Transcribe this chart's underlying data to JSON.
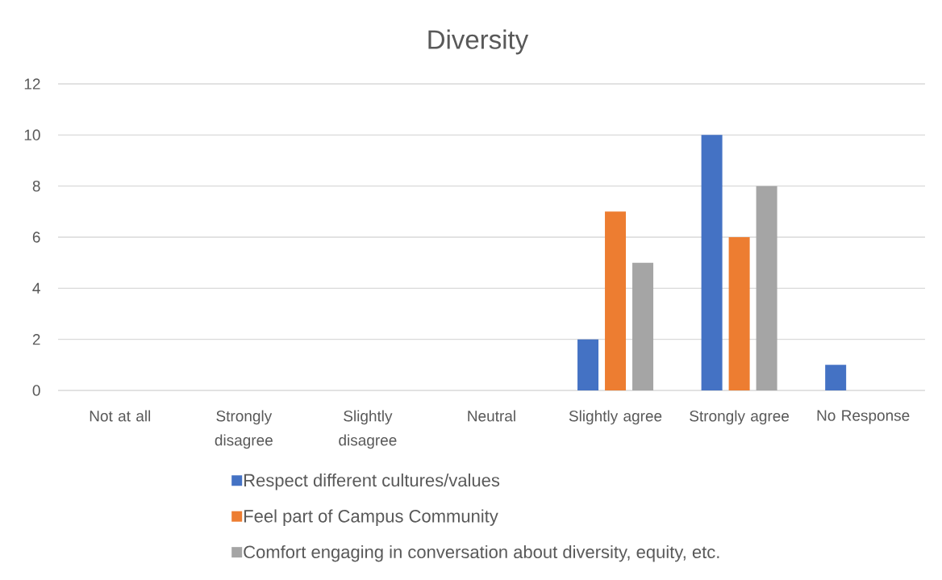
{
  "chart_data": {
    "type": "bar",
    "title": "Diversity",
    "categories": [
      "Not at all",
      "Strongly disagree",
      "Slightly disagree",
      "Neutral",
      "Slightly agree",
      "Strongly agree",
      "No Response"
    ],
    "series": [
      {
        "name": "Respect different cultures/values",
        "color": "#4472c4",
        "values": [
          0,
          0,
          0,
          0,
          2,
          10,
          1
        ]
      },
      {
        "name": "Feel part of Campus Community",
        "color": "#ed7d31",
        "values": [
          0,
          0,
          0,
          0,
          7,
          6,
          0
        ]
      },
      {
        "name": "Comfort engaging in conversation about diversity, equity, etc.",
        "color": "#a5a5a5",
        "values": [
          0,
          0,
          0,
          0,
          5,
          8,
          0
        ]
      }
    ],
    "ylim": [
      0,
      12
    ],
    "yticks": [
      0,
      2,
      4,
      6,
      8,
      10,
      12
    ],
    "grid": "y",
    "legend": "bottom"
  }
}
